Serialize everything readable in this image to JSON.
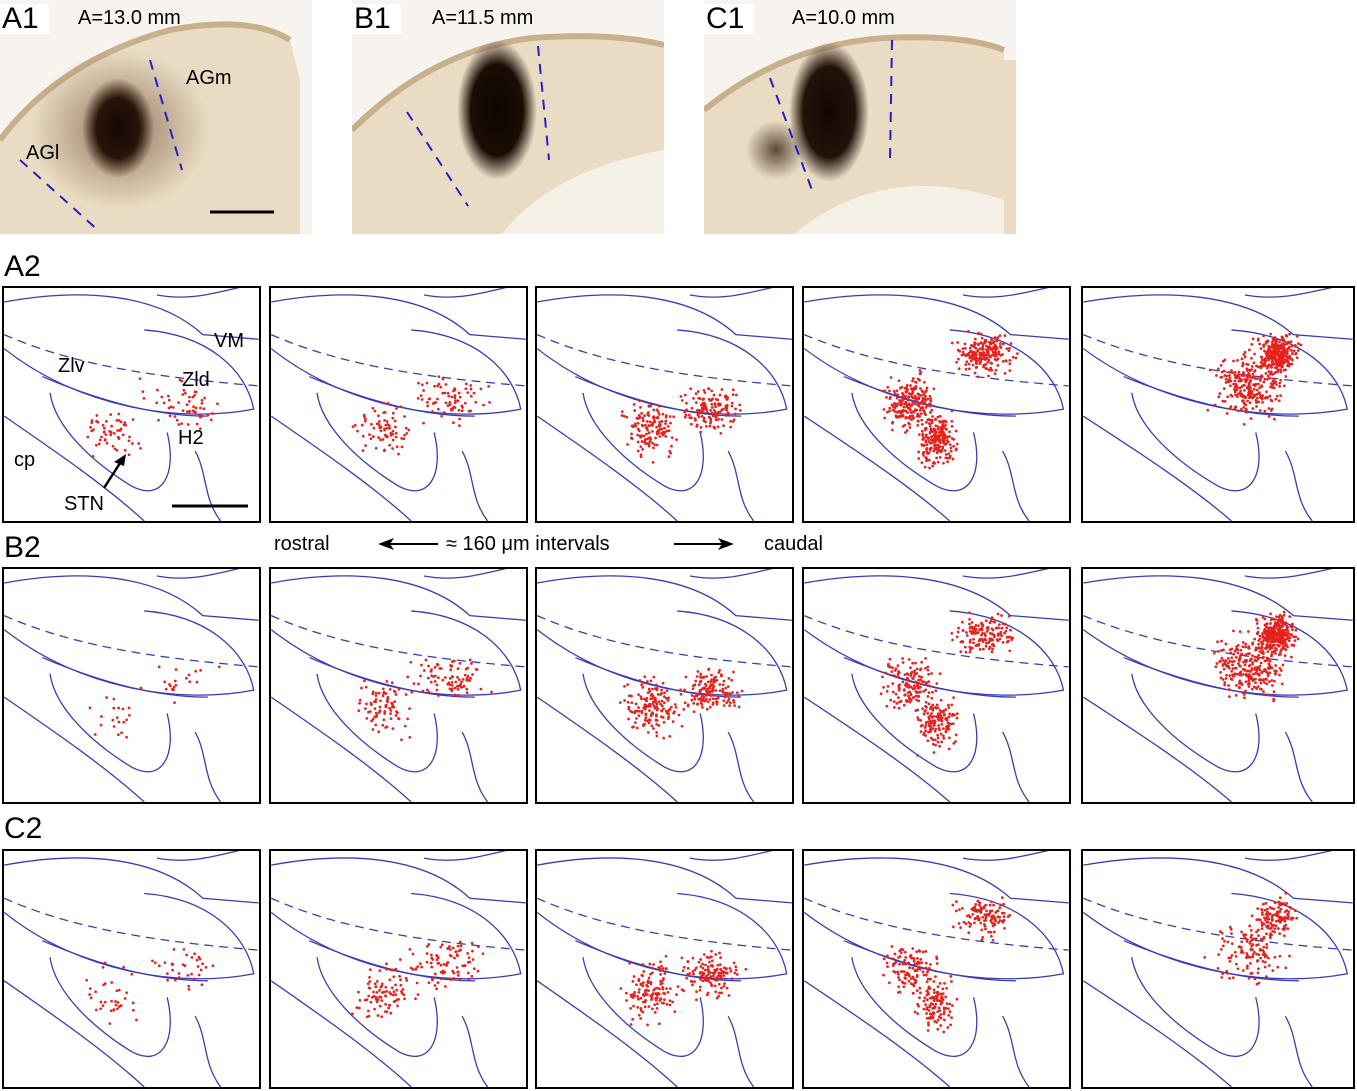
{
  "top_row": [
    {
      "label": "A1",
      "title": "A=13.0 mm",
      "region_labels": [
        "AGm",
        "AGl"
      ],
      "has_scale_bar": true
    },
    {
      "label": "B1",
      "title": "A=11.5 mm",
      "region_labels": [],
      "has_scale_bar": false
    },
    {
      "label": "C1",
      "title": "A=10.0 mm",
      "region_labels": [],
      "has_scale_bar": false
    }
  ],
  "rows": [
    {
      "label": "A2"
    },
    {
      "label": "B2"
    },
    {
      "label": "C2"
    }
  ],
  "a2_annotations": {
    "vm": "VM",
    "zlv": "Zlv",
    "zld": "Zld",
    "h2": "H2",
    "cp": "cp",
    "stn": "STN"
  },
  "interval_note": {
    "rostral": "rostral",
    "interval": "≈ 160 μm intervals",
    "caudal": "caudal"
  },
  "colors": {
    "outline": "#3a3ab8",
    "dots": "#e8211d",
    "tissue": "#efe3cf",
    "stain": "#1a0d05"
  },
  "dot_density": [
    [
      110,
      150,
      280,
      620,
      520
    ],
    [
      40,
      170,
      300,
      420,
      560
    ],
    [
      70,
      180,
      260,
      340,
      240
    ]
  ]
}
